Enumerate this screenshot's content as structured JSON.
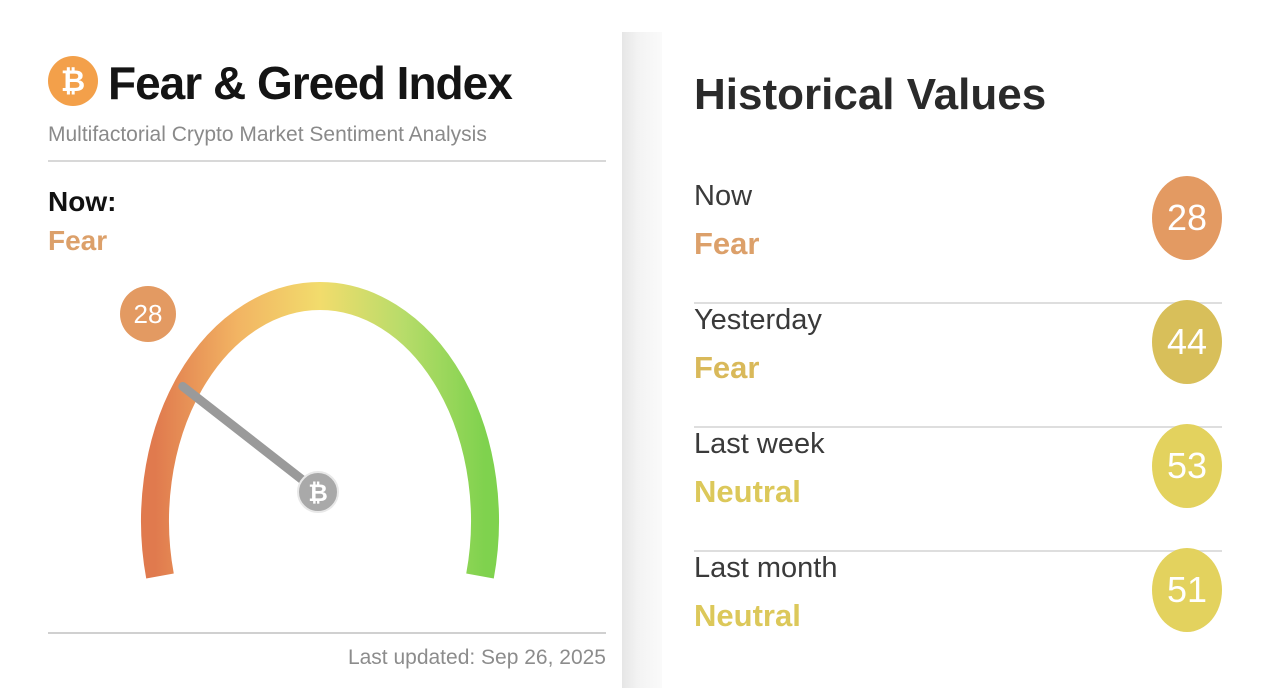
{
  "header": {
    "logo_icon": "bitcoin-icon",
    "logo_glyph": "₿",
    "title": "Fear & Greed Index",
    "subtitle": "Multifactorial Crypto Market Sentiment Analysis"
  },
  "now": {
    "label": "Now:",
    "classification": "Fear",
    "value": "28",
    "color": "#e39a62"
  },
  "gauge": {
    "value": 28,
    "min": 0,
    "max": 100,
    "hub_glyph": "₿",
    "gradient_colors": [
      "#e07a4e",
      "#f2b463",
      "#f2dc6c",
      "#b8dc6a",
      "#7fd24e"
    ]
  },
  "footer": {
    "last_updated": "Last updated: Sep 26, 2025"
  },
  "historical": {
    "title": "Historical Values",
    "rows": [
      {
        "period": "Now",
        "classification": "Fear",
        "value": "28",
        "badge_color": "#e39a62",
        "text_color": "#dca06a"
      },
      {
        "period": "Yesterday",
        "classification": "Fear",
        "value": "44",
        "badge_color": "#d8bf5a",
        "text_color": "#d9b95a"
      },
      {
        "period": "Last week",
        "classification": "Neutral",
        "value": "53",
        "badge_color": "#e3d25e",
        "text_color": "#dcc85a"
      },
      {
        "period": "Last month",
        "classification": "Neutral",
        "value": "51",
        "badge_color": "#e3d25e",
        "text_color": "#dcc85a"
      }
    ]
  },
  "decorations": {
    "left_corner_icon": "cursor-arrow-icon",
    "right_corner_icon": "close-stroke-icon"
  }
}
